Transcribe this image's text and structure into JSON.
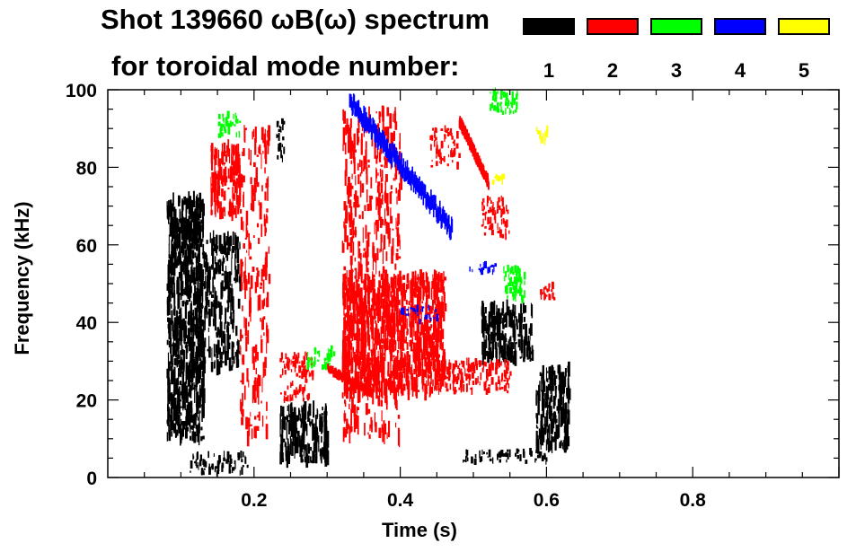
{
  "chart_data": {
    "type": "spectrogram",
    "title": "Shot 139660 ωB(ω) spectrum",
    "legend_title": "for toroidal mode number:",
    "xlabel": "Time (s)",
    "ylabel": "Frequency (kHz)",
    "xlim": [
      0.0,
      1.0
    ],
    "ylim": [
      0,
      100
    ],
    "x_ticks": [
      0.2,
      0.4,
      0.6,
      0.8
    ],
    "x_tick_labels": [
      "0.2",
      "0.4",
      "0.6",
      "0.8"
    ],
    "y_ticks": [
      0,
      20,
      40,
      60,
      80,
      100
    ],
    "y_tick_labels": [
      "0",
      "20",
      "40",
      "60",
      "80",
      "100"
    ],
    "legend": [
      {
        "mode": "1",
        "color": "#000000"
      },
      {
        "mode": "2",
        "color": "#ff0000"
      },
      {
        "mode": "3",
        "color": "#00ff00"
      },
      {
        "mode": "4",
        "color": "#0000ff"
      },
      {
        "mode": "5",
        "color": "#ffff00"
      }
    ],
    "regions": [
      {
        "mode": "1",
        "t": [
          0.08,
          0.13
        ],
        "f": [
          10,
          72
        ],
        "density": 1.0
      },
      {
        "mode": "1",
        "t": [
          0.12,
          0.18
        ],
        "f": [
          28,
          62
        ],
        "density": 0.55
      },
      {
        "mode": "1",
        "t": [
          0.11,
          0.19
        ],
        "f": [
          1,
          6
        ],
        "density": 0.7
      },
      {
        "mode": "1",
        "t": [
          0.23,
          0.24
        ],
        "f": [
          82,
          92
        ],
        "density": 0.8
      },
      {
        "mode": "1",
        "t": [
          0.235,
          0.3
        ],
        "f": [
          4,
          18
        ],
        "density": 1.0
      },
      {
        "mode": "1",
        "t": [
          0.48,
          0.6
        ],
        "f": [
          4,
          7
        ],
        "density": 0.6
      },
      {
        "mode": "1",
        "t": [
          0.51,
          0.58
        ],
        "f": [
          30,
          44
        ],
        "density": 0.9
      },
      {
        "mode": "1",
        "t": [
          0.585,
          0.63
        ],
        "f": [
          8,
          28
        ],
        "density": 0.85
      },
      {
        "mode": "2",
        "t": [
          0.14,
          0.18
        ],
        "f": [
          68,
          85
        ],
        "density": 0.9
      },
      {
        "mode": "2",
        "t": [
          0.18,
          0.22
        ],
        "f": [
          10,
          90
        ],
        "density": 0.25
      },
      {
        "mode": "2",
        "t": [
          0.235,
          0.28
        ],
        "f": [
          20,
          32
        ],
        "density": 0.7
      },
      {
        "mode": "2",
        "t": [
          0.32,
          0.46
        ],
        "f": [
          22,
          52
        ],
        "density": 0.95
      },
      {
        "mode": "2",
        "t": [
          0.32,
          0.4
        ],
        "f": [
          10,
          95
        ],
        "density": 0.3
      },
      {
        "mode": "2",
        "t": [
          0.46,
          0.55
        ],
        "f": [
          22,
          30
        ],
        "density": 0.9
      },
      {
        "mode": "2",
        "t": [
          0.51,
          0.55
        ],
        "f": [
          62,
          72
        ],
        "density": 0.7
      },
      {
        "mode": "2",
        "t": [
          0.44,
          0.48
        ],
        "f": [
          80,
          90
        ],
        "density": 0.6
      },
      {
        "mode": "2",
        "t": [
          0.59,
          0.61
        ],
        "f": [
          46,
          50
        ],
        "density": 0.8
      },
      {
        "mode": "3",
        "t": [
          0.15,
          0.18
        ],
        "f": [
          88,
          94
        ],
        "density": 0.8
      },
      {
        "mode": "3",
        "t": [
          0.52,
          0.56
        ],
        "f": [
          94,
          100
        ],
        "density": 0.85
      },
      {
        "mode": "3",
        "t": [
          0.54,
          0.57
        ],
        "f": [
          46,
          54
        ],
        "density": 0.95
      },
      {
        "mode": "3",
        "t": [
          0.27,
          0.31
        ],
        "f": [
          28,
          34
        ],
        "density": 0.6
      },
      {
        "mode": "4",
        "t": [
          0.4,
          0.45
        ],
        "f": [
          40,
          44
        ],
        "density": 0.4
      },
      {
        "mode": "4",
        "t": [
          0.49,
          0.53
        ],
        "f": [
          53,
          55
        ],
        "density": 0.7
      },
      {
        "mode": "5",
        "t": [
          0.585,
          0.6
        ],
        "f": [
          86,
          90
        ],
        "density": 0.8
      },
      {
        "mode": "5",
        "t": [
          0.52,
          0.54
        ],
        "f": [
          76,
          78
        ],
        "density": 0.6
      }
    ],
    "chirps": [
      {
        "mode": "4",
        "t_start": 0.33,
        "f_start": 97,
        "t_end": 0.47,
        "f_end": 64,
        "width_khz": 3.5
      },
      {
        "mode": "2",
        "t_start": 0.48,
        "f_start": 92,
        "t_end": 0.52,
        "f_end": 76,
        "width_khz": 2
      },
      {
        "mode": "2",
        "t_start": 0.3,
        "f_start": 28,
        "t_end": 0.36,
        "f_end": 22,
        "width_khz": 1.5
      }
    ]
  }
}
